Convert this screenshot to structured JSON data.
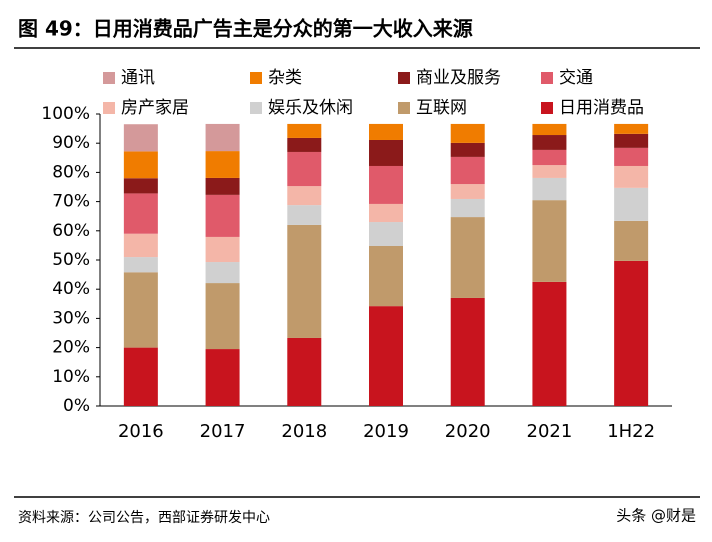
{
  "figure_title": "图 49：日用消费品广告主是分众的第一大收入来源",
  "source": "资料来源：公司公告，西部证券研发中心",
  "watermark": "头条 @财是",
  "chart_data": {
    "type": "stacked_bar",
    "categories": [
      "2016",
      "2017",
      "2018",
      "2019",
      "2020",
      "2021",
      "1H22"
    ],
    "series": [
      {
        "name": "通讯",
        "color": "#d4999a",
        "values": [
          9.3,
          9.3,
          0,
          0,
          0,
          0,
          0
        ]
      },
      {
        "name": "杂类",
        "color": "#f07c00",
        "values": [
          9.2,
          9.2,
          4.8,
          5.5,
          6.5,
          3.8,
          3.4
        ]
      },
      {
        "name": "商业及服务",
        "color": "#8b1a1a",
        "values": [
          5.2,
          5.8,
          4.8,
          8.9,
          4.8,
          5.1,
          4.8
        ]
      },
      {
        "name": "交通",
        "color": "#e05a6a",
        "values": [
          13.8,
          14.4,
          11.7,
          13,
          9.3,
          5.2,
          6.2
        ]
      },
      {
        "name": "房产家居",
        "color": "#f4b6a8",
        "values": [
          8,
          8.6,
          6.5,
          6.2,
          5.1,
          4.4,
          7.5
        ]
      },
      {
        "name": "娱乐及休闲",
        "color": "#d0d0d0",
        "values": [
          5.2,
          7.2,
          6.8,
          8.2,
          6.2,
          7.6,
          11.3
        ]
      },
      {
        "name": "互联网",
        "color": "#c09a6b",
        "values": [
          25.8,
          22.6,
          38.7,
          20.6,
          27.7,
          28,
          13.7
        ]
      },
      {
        "name": "日用消费品",
        "color": "#c8141e",
        "values": [
          20,
          19.5,
          23.3,
          34.2,
          37,
          42.5,
          49.7
        ]
      }
    ],
    "ylim": [
      0,
      100
    ],
    "yticks": [
      {
        "value": 0,
        "label": "0%"
      },
      {
        "value": 10,
        "label": "10%"
      },
      {
        "value": 20,
        "label": "20%"
      },
      {
        "value": 30,
        "label": "30%"
      },
      {
        "value": 40,
        "label": "40%"
      },
      {
        "value": 50,
        "label": "50%"
      },
      {
        "value": 60,
        "label": "60%"
      },
      {
        "value": 70,
        "label": "70%"
      },
      {
        "value": 80,
        "label": "80%"
      },
      {
        "value": 90,
        "label": "90%"
      },
      {
        "value": 100,
        "label": "100%"
      }
    ]
  }
}
